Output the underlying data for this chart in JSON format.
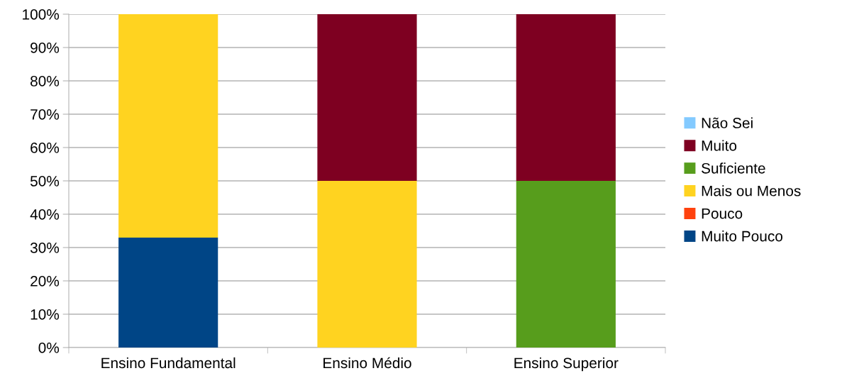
{
  "chart_data": {
    "type": "bar",
    "stacked": true,
    "categories": [
      "Ensino Fundamental",
      "Ensino Médio",
      "Ensino Superior"
    ],
    "series": [
      {
        "name": "Muito Pouco",
        "color": "#004586",
        "values": [
          33,
          0,
          0
        ]
      },
      {
        "name": "Pouco",
        "color": "#ff420e",
        "values": [
          0,
          0,
          0
        ]
      },
      {
        "name": "Mais ou Menos",
        "color": "#ffd320",
        "values": [
          67,
          50,
          0
        ]
      },
      {
        "name": "Suficiente",
        "color": "#579d1c",
        "values": [
          0,
          0,
          50
        ]
      },
      {
        "name": "Muito",
        "color": "#7e0021",
        "values": [
          0,
          50,
          50
        ]
      },
      {
        "name": "Não Sei",
        "color": "#83caff",
        "values": [
          0,
          0,
          0
        ]
      }
    ],
    "ylim": [
      0,
      100
    ],
    "yticks": [
      {
        "value": 0,
        "label": "0%"
      },
      {
        "value": 10,
        "label": "10%"
      },
      {
        "value": 20,
        "label": "20%"
      },
      {
        "value": 30,
        "label": "30%"
      },
      {
        "value": 40,
        "label": "40%"
      },
      {
        "value": 50,
        "label": "50%"
      },
      {
        "value": 60,
        "label": "60%"
      },
      {
        "value": 70,
        "label": "70%"
      },
      {
        "value": 80,
        "label": "80%"
      },
      {
        "value": 90,
        "label": "90%"
      },
      {
        "value": 100,
        "label": "100%"
      }
    ],
    "grid": "y",
    "legend": "right"
  }
}
